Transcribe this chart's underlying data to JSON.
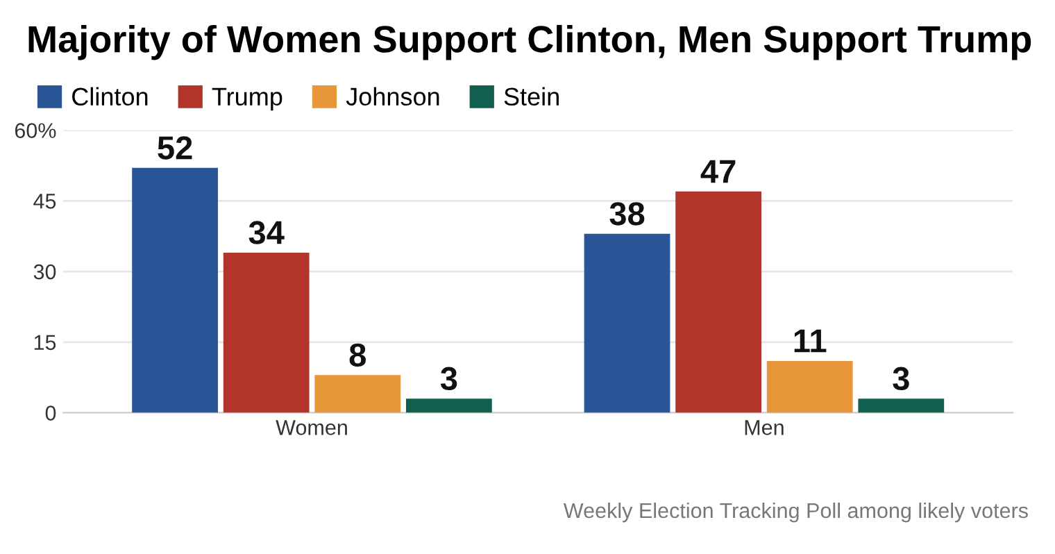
{
  "chart_data": {
    "type": "bar",
    "title": "Majority of Women Support Clinton, Men Support Trump",
    "categories": [
      "Women",
      "Men"
    ],
    "series": [
      {
        "name": "Clinton",
        "color": "#2a5597",
        "values": [
          52,
          38
        ]
      },
      {
        "name": "Trump",
        "color": "#b2352b",
        "values": [
          34,
          47
        ]
      },
      {
        "name": "Johnson",
        "color": "#e8963a",
        "values": [
          8,
          11
        ]
      },
      {
        "name": "Stein",
        "color": "#11604f",
        "values": [
          3,
          3
        ]
      }
    ],
    "ylim": [
      0,
      60
    ],
    "yticks": [
      0,
      15,
      30,
      45,
      {
        "value": 60,
        "label": "60%"
      }
    ],
    "grid": "y",
    "legend": "top left",
    "data_labels": true,
    "annotations": [
      "Weekly Election Tracking Poll among likely voters"
    ]
  }
}
